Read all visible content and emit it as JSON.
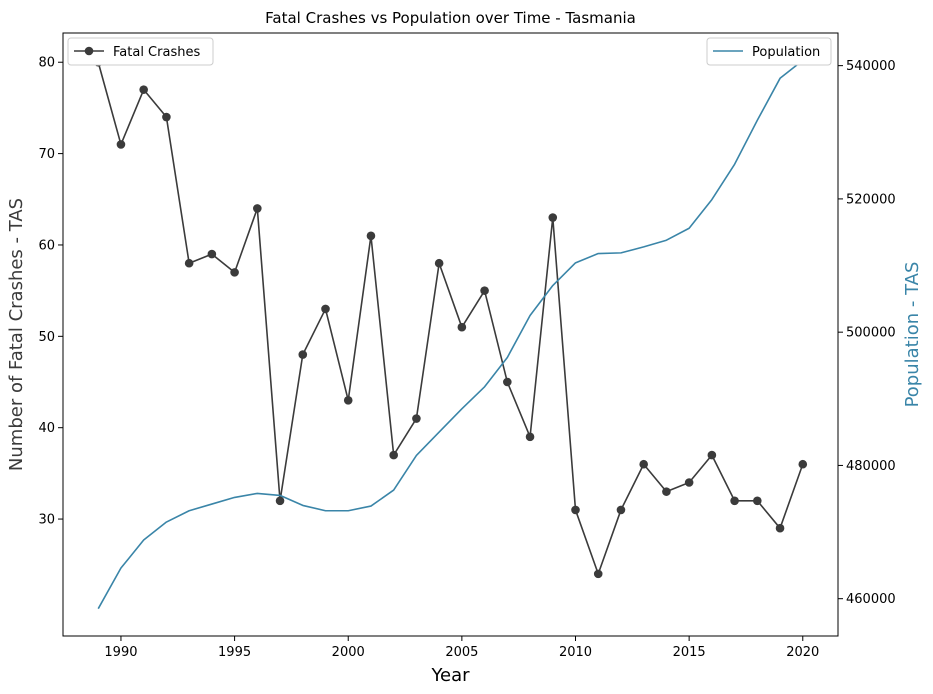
{
  "chart_data": {
    "type": "line",
    "title": "Fatal Crashes vs Population over Time - Tasmania",
    "xlabel": "Year",
    "ylabel_left": "Number of Fatal Crashes - TAS",
    "ylabel_right": "Population - TAS",
    "x": [
      1989,
      1990,
      1991,
      1992,
      1993,
      1994,
      1995,
      1996,
      1997,
      1998,
      1999,
      2000,
      2001,
      2002,
      2003,
      2004,
      2005,
      2006,
      2007,
      2008,
      2009,
      2010,
      2011,
      2012,
      2013,
      2014,
      2015,
      2016,
      2017,
      2018,
      2019,
      2020
    ],
    "xlim": [
      1987.45,
      2021.55
    ],
    "xticks": [
      1990,
      1995,
      2000,
      2005,
      2010,
      2015,
      2020
    ],
    "series": [
      {
        "name": "Fatal Crashes",
        "axis": "left",
        "color": "#3b3b3b",
        "marker": "circle",
        "values": [
          80,
          71,
          77,
          74,
          58,
          59,
          57,
          64,
          32,
          48,
          53,
          43,
          61,
          37,
          41,
          58,
          51,
          55,
          45,
          39,
          63,
          31,
          24,
          31,
          36,
          33,
          34,
          37,
          32,
          32,
          29,
          36
        ]
      },
      {
        "name": "Population",
        "axis": "right",
        "color": "#3a85a8",
        "marker": "none",
        "values": [
          458500,
          464600,
          468800,
          471500,
          473200,
          474200,
          475200,
          475800,
          475500,
          474000,
          473200,
          473200,
          473900,
          476300,
          481500,
          485000,
          488500,
          491800,
          496200,
          502500,
          507000,
          510400,
          511800,
          511900,
          512800,
          513800,
          515600,
          519900,
          525200,
          531800,
          538100,
          540800
        ]
      }
    ],
    "ylim_left": [
      17.2,
      83.2
    ],
    "yticks_left": [
      30,
      40,
      50,
      60,
      70,
      80
    ],
    "ylim_right": [
      454400,
      544900
    ],
    "yticks_right": [
      460000,
      480000,
      500000,
      520000,
      540000
    ],
    "legend_left_placement": "top-left",
    "legend_right_placement": "top-right",
    "grid": false
  }
}
